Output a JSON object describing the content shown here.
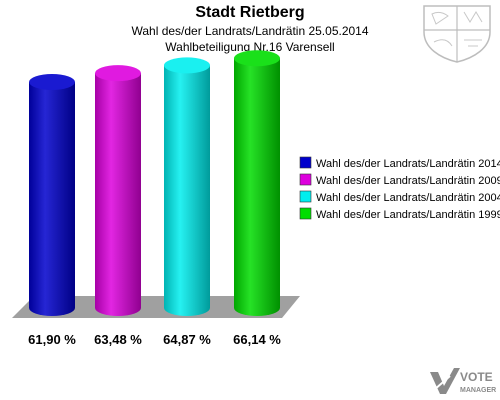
{
  "chart_data": {
    "type": "bar",
    "title": "Stadt Rietberg",
    "subtitle": [
      "Wahl des/der Landrats/Landrätin 25.05.2014",
      "Wahlbeteiligung Nr.16 Varensell"
    ],
    "categories": [
      "Wahl des/der Landrats/Landrätin 2014",
      "Wahl des/der Landrats/Landrätin 2009",
      "Wahl des/der Landrats/Landrätin 2004",
      "Wahl des/der Landrats/Landrätin 1999"
    ],
    "values": [
      61.9,
      63.48,
      64.87,
      66.14
    ],
    "value_labels": [
      "61,90 %",
      "63,48 %",
      "64,87 %",
      "66,14 %"
    ],
    "colors": [
      "#0000cc",
      "#dd00dd",
      "#00eeee",
      "#00dd00"
    ],
    "legend_position": "right",
    "grid": false
  },
  "logo": {
    "text_top": "VOTE",
    "text_bottom": "MANAGER"
  }
}
